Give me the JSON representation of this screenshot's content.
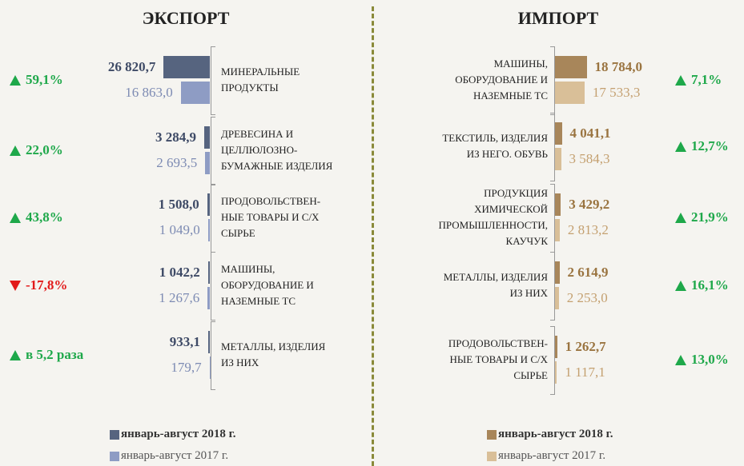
{
  "chart_data": [
    {
      "type": "bar",
      "bar_direction": "left",
      "title": "ЭКСПОРТ",
      "categories": [
        "МИНЕРАЛЬНЫЕ\nПРОДУКТЫ",
        "ДРЕВЕСИНА И\nЦЕЛЛЮЛОЗНО-\nБУМАЖНЫЕ ИЗДЕЛИЯ",
        "ПРОДОВОЛЬСТВЕН-\nНЫЕ ТОВАРЫ И С/Х\nСЫРЬЕ",
        "МАШИНЫ,\nОБОРУДОВАНИЕ И\nНАЗЕМНЫЕ ТС",
        "МЕТАЛЛЫ, ИЗДЕЛИЯ\nИЗ НИХ"
      ],
      "series": [
        {
          "name": "январь-август 2018 г.",
          "color": "#56647f",
          "text_color": "#3e4a66",
          "values": [
            26820.7,
            3284.9,
            1508.0,
            1042.2,
            933.1
          ],
          "value_labels": [
            "26 820,7",
            "3 284,9",
            "1 508,0",
            "1 042,2",
            "933,1"
          ]
        },
        {
          "name": "январь-август 2017 г.",
          "color": "#8e9cc4",
          "text_color": "#7d8bb3",
          "values": [
            16863.0,
            2693.5,
            1049.0,
            1267.6,
            179.7
          ],
          "value_labels": [
            "16 863,0",
            "2 693,5",
            "1 049,0",
            "1 267,6",
            "179,7"
          ]
        }
      ],
      "xlim": [
        0,
        27000
      ],
      "changes": {
        "labels": [
          "59,1%",
          "22,0%",
          "43,8%",
          "-17,8%",
          "в 5,2 раза"
        ],
        "directions": [
          "up",
          "up",
          "up",
          "down",
          "up"
        ],
        "colors": {
          "up": "#1ea84a",
          "down": "#e21a1a"
        }
      }
    },
    {
      "type": "bar",
      "bar_direction": "right",
      "title": "ИМПОРТ",
      "categories": [
        "МАШИНЫ,\nОБОРУДОВАНИЕ И\nНАЗЕМНЫЕ ТС",
        "ТЕКСТИЛЬ, ИЗДЕЛИЯ\nИЗ НЕГО. ОБУВЬ",
        "ПРОДУКЦИЯ\nХИМИЧЕСКОЙ\nПРОМЫШЛЕННОСТИ,\nКАУЧУК",
        "МЕТАЛЛЫ, ИЗДЕЛИЯ\nИЗ НИХ",
        "ПРОДОВОЛЬСТВЕН-\nНЫЕ ТОВАРЫ И С/Х\nСЫРЬЕ"
      ],
      "series": [
        {
          "name": "январь-август 2018 г.",
          "color": "#a8865a",
          "text_color": "#9a7440",
          "values": [
            18784.0,
            4041.1,
            3429.2,
            2614.9,
            1262.7
          ],
          "value_labels": [
            "18 784,0",
            "4 041,1",
            "3 429,2",
            "2 614,9",
            "1 262,7"
          ]
        },
        {
          "name": "январь-август 2017 г.",
          "color": "#d9bf98",
          "text_color": "#c4a070",
          "values": [
            17533.3,
            3584.3,
            2813.2,
            2253.0,
            1117.1
          ],
          "value_labels": [
            "17 533,3",
            "3 584,3",
            "2 813,2",
            "2 253,0",
            "1 117,1"
          ]
        }
      ],
      "xlim": [
        0,
        19000
      ],
      "changes": {
        "labels": [
          "7,1%",
          "12,7%",
          "21,9%",
          "16,1%",
          "13,0%"
        ],
        "directions": [
          "up",
          "up",
          "up",
          "up",
          "up"
        ],
        "colors": {
          "up": "#1ea84a",
          "down": "#e21a1a"
        }
      }
    }
  ]
}
